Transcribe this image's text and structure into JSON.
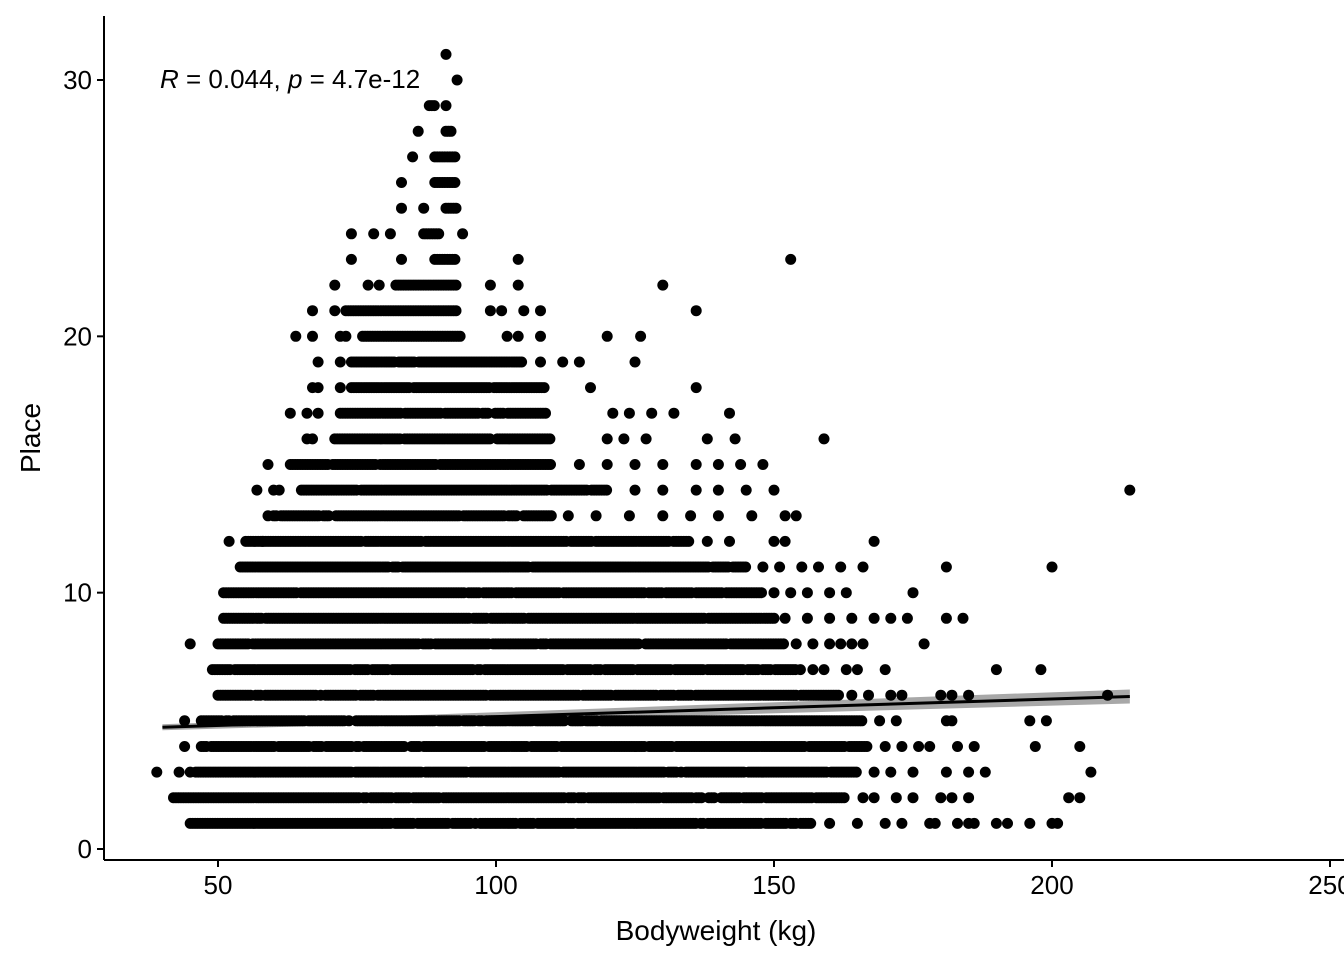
{
  "chart_data": {
    "type": "scatter",
    "xlabel": "Bodyweight (kg)",
    "ylabel": "Place",
    "xlim": [
      30,
      250
    ],
    "ylim": [
      -0.5,
      32.5
    ],
    "x_ticks": [
      50,
      100,
      150,
      200,
      250
    ],
    "y_ticks": [
      0,
      10,
      20,
      30
    ],
    "grid": false,
    "annotation": {
      "r_symbol": "R",
      "r_text": " = 0.044, ",
      "p_symbol": "p",
      "p_text": " = 4.7e-12"
    },
    "point_color": "#000000",
    "regression": {
      "x": [
        40,
        214
      ],
      "y": [
        4.75,
        5.95
      ],
      "band_color": "#999999",
      "line_color": "#000000"
    },
    "bands": [
      {
        "place": 1,
        "x_min": 45,
        "x_max": 157,
        "extra_x": [
          160,
          165,
          170,
          173,
          178,
          179,
          183,
          185,
          186,
          190,
          192,
          196,
          200,
          201
        ]
      },
      {
        "place": 2,
        "x_min": 42,
        "x_max": 163,
        "extra_x": [
          166,
          168,
          172,
          175,
          180,
          182,
          185,
          203,
          205
        ]
      },
      {
        "place": 3,
        "x_min": 46,
        "x_max": 165,
        "extra_x": [
          39,
          43,
          45,
          168,
          171,
          175,
          181,
          185,
          188,
          207
        ]
      },
      {
        "place": 4,
        "x_min": 47,
        "x_max": 167,
        "extra_x": [
          44,
          170,
          173,
          176,
          178,
          183,
          186,
          197,
          205
        ]
      },
      {
        "place": 5,
        "x_min": 47,
        "x_max": 166,
        "extra_x": [
          44,
          169,
          172,
          181,
          182,
          196,
          199
        ]
      },
      {
        "place": 6,
        "x_min": 50,
        "x_max": 162,
        "extra_x": [
          164,
          167,
          171,
          173,
          180,
          182,
          185,
          210
        ]
      },
      {
        "place": 7,
        "x_min": 49,
        "x_max": 155,
        "extra_x": [
          157,
          159,
          163,
          165,
          170,
          190,
          198
        ]
      },
      {
        "place": 8,
        "x_min": 50,
        "x_max": 152,
        "extra_x": [
          45,
          154,
          157,
          160,
          162,
          164,
          166,
          177
        ]
      },
      {
        "place": 9,
        "x_min": 51,
        "x_max": 150,
        "extra_x": [
          152,
          156,
          160,
          164,
          168,
          171,
          174,
          181,
          184
        ]
      },
      {
        "place": 10,
        "x_min": 51,
        "x_max": 148,
        "extra_x": [
          150,
          153,
          156,
          160,
          163,
          175
        ]
      },
      {
        "place": 11,
        "x_min": 54,
        "x_max": 145,
        "extra_x": [
          148,
          151,
          155,
          158,
          162,
          166,
          181,
          200
        ]
      },
      {
        "place": 12,
        "x_min": 55,
        "x_max": 135,
        "extra_x": [
          52,
          58,
          138,
          142,
          150,
          152,
          168
        ]
      },
      {
        "place": 13,
        "x_min": 60,
        "x_max": 110,
        "extra_x": [
          59,
          113,
          118,
          124,
          130,
          135,
          140,
          146,
          152,
          154
        ]
      },
      {
        "place": 14,
        "x_min": 65,
        "x_max": 120,
        "extra_x": [
          57,
          60,
          61,
          125,
          130,
          136,
          140,
          145,
          150,
          214
        ]
      },
      {
        "place": 15,
        "x_min": 63,
        "x_max": 110,
        "extra_x": [
          59,
          115,
          120,
          125,
          130,
          136,
          140,
          144,
          148
        ]
      },
      {
        "place": 16,
        "x_min": 71,
        "x_max": 110,
        "extra_x": [
          66,
          67,
          120,
          123,
          127,
          138,
          143,
          159
        ]
      },
      {
        "place": 17,
        "x_min": 72,
        "x_max": 109,
        "extra_x": [
          63,
          66,
          68,
          121,
          124,
          128,
          132,
          142
        ]
      },
      {
        "place": 18,
        "x_min": 74,
        "x_max": 109,
        "extra_x": [
          67,
          68,
          72,
          117,
          136
        ]
      },
      {
        "place": 19,
        "x_min": 74,
        "x_max": 105,
        "extra_x": [
          68,
          72,
          108,
          112,
          115,
          125
        ]
      },
      {
        "place": 20,
        "x_min": 76,
        "x_max": 94,
        "extra_x": [
          64,
          67,
          72,
          73,
          102,
          104,
          108,
          120,
          126
        ]
      },
      {
        "place": 21,
        "x_min": 73,
        "x_max": 93,
        "extra_x": [
          67,
          71,
          99,
          101,
          105,
          108,
          136
        ]
      },
      {
        "place": 22,
        "x_min": 82,
        "x_max": 93,
        "extra_x": [
          71,
          77,
          79,
          99,
          104,
          130
        ]
      },
      {
        "place": 23,
        "x_min": 89,
        "x_max": 93,
        "extra_x": [
          74,
          83,
          104,
          153
        ]
      },
      {
        "place": 24,
        "x_min": 87,
        "x_max": 90,
        "extra_x": [
          74,
          78,
          81,
          94
        ]
      },
      {
        "place": 25,
        "x_min": 91,
        "x_max": 93,
        "extra_x": [
          83,
          87
        ]
      },
      {
        "place": 26,
        "x_min": 89,
        "x_max": 93,
        "extra_x": [
          83
        ]
      },
      {
        "place": 27,
        "x_min": 89,
        "x_max": 93,
        "extra_x": [
          85
        ]
      },
      {
        "place": 28,
        "x_min": 91,
        "x_max": 92,
        "extra_x": [
          86
        ]
      },
      {
        "place": 29,
        "x_min": 88,
        "x_max": 89,
        "extra_x": [
          91
        ]
      },
      {
        "place": 30,
        "x_min": 93,
        "x_max": 93,
        "extra_x": []
      },
      {
        "place": 31,
        "x_min": 91,
        "x_max": 91,
        "extra_x": []
      }
    ]
  }
}
